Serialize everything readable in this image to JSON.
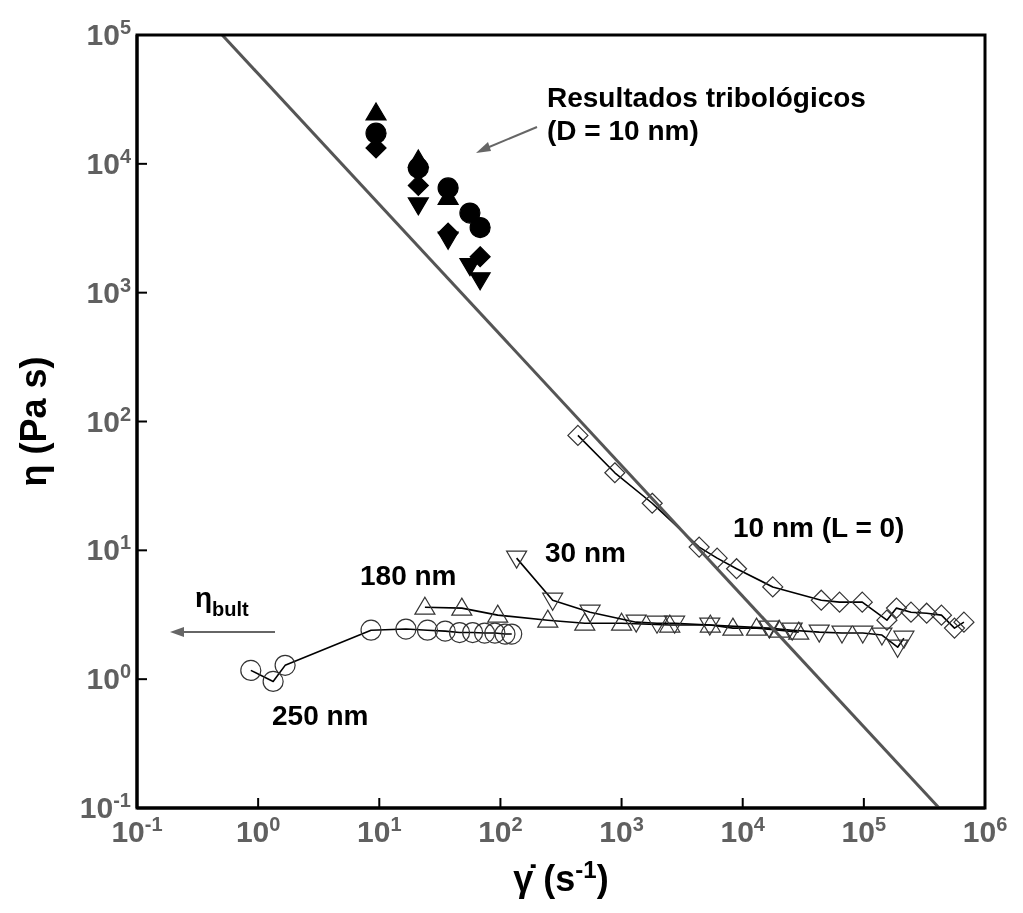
{
  "chart_data": {
    "type": "line",
    "xlabel": "γ̇ (s$^{-1}$)",
    "ylabel": "η (Pa s)",
    "log": "xy",
    "grid": false,
    "legend": false,
    "xlim": [
      0.1,
      1000000
    ],
    "ylim": [
      0.1,
      100000
    ],
    "xticks": [
      {
        "value": 0.1,
        "label": "10$^{-1}$"
      },
      {
        "value": 1,
        "label": "10$^{0}$"
      },
      {
        "value": 10,
        "label": "10$^{1}$"
      },
      {
        "value": 100,
        "label": "10$^{2}$"
      },
      {
        "value": 1000,
        "label": "10$^{3}$"
      },
      {
        "value": 10000,
        "label": "10$^{4}$"
      },
      {
        "value": 100000,
        "label": "10$^{5}$"
      },
      {
        "value": 1000000,
        "label": "10$^{6}$"
      }
    ],
    "yticks": [
      {
        "value": 0.1,
        "label": "10$^{-1}$"
      },
      {
        "value": 1,
        "label": "10$^{0}$"
      },
      {
        "value": 10,
        "label": "10$^{1}$"
      },
      {
        "value": 100,
        "label": "10$^{2}$"
      },
      {
        "value": 1000,
        "label": "10$^{3}$"
      },
      {
        "value": 10000,
        "label": "10$^{4}$"
      },
      {
        "value": 100000,
        "label": "10$^{5}$"
      }
    ],
    "series": [
      {
        "type": "line",
        "marker": "circle",
        "color": "#000000",
        "x": [
          0.87,
          1.33,
          1.67,
          8.55,
          16.6,
          25,
          35,
          46,
          59,
          74,
          90,
          109,
          124
        ],
        "values": [
          1.17,
          0.96,
          1.28,
          2.4,
          2.45,
          2.4,
          2.36,
          2.3,
          2.3,
          2.28,
          2.28,
          2.24,
          2.24
        ]
      },
      {
        "type": "line",
        "marker": "triangle",
        "color": "#000000",
        "x": [
          23.8,
          48,
          95,
          246,
          497,
          1000,
          2500,
          5400,
          8300,
          13000,
          20000,
          29000
        ],
        "values": [
          3.62,
          3.56,
          3.14,
          2.87,
          2.72,
          2.72,
          2.63,
          2.63,
          2.49,
          2.49,
          2.4,
          2.32
        ]
      },
      {
        "type": "line",
        "marker": "triangle_down",
        "color": "#000000",
        "x": [
          136,
          270,
          550,
          1320,
          1960,
          2740,
          5350,
          16600,
          25600,
          42800,
          66000,
          98000,
          141000,
          190000,
          214000
        ],
        "values": [
          8.7,
          4.1,
          3.31,
          2.77,
          2.72,
          2.72,
          2.63,
          2.49,
          2.4,
          2.32,
          2.28,
          2.28,
          2.2,
          1.77,
          2.08
        ]
      },
      {
        "type": "line",
        "marker": "diamond",
        "color": "#000000",
        "x": [
          436,
          880,
          1790,
          4370,
          6150,
          8900,
          17700,
          44500,
          63000,
          97000,
          155000,
          186000,
          245000,
          330000,
          437000,
          560000,
          670000
        ],
        "values": [
          78,
          40,
          23.2,
          10.6,
          8.7,
          7.2,
          5.2,
          4.1,
          3.96,
          3.96,
          2.87,
          3.56,
          3.31,
          3.25,
          3.14,
          2.49,
          2.77
        ]
      },
      {
        "type": "scatter",
        "marker": "triangle",
        "color": "#000000",
        "x": [
          9.4,
          21,
          37
        ],
        "values": [
          24800,
          10700,
          5500
        ]
      },
      {
        "type": "scatter",
        "marker": "circle",
        "color": "#000000",
        "x": [
          9.4,
          21,
          37,
          56,
          68
        ],
        "values": [
          17300,
          9300,
          6500,
          4150,
          3200
        ]
      },
      {
        "type": "scatter",
        "marker": "diamond",
        "color": "#000000",
        "x": [
          9.4,
          21,
          37,
          68
        ],
        "values": [
          13300,
          6800,
          2900,
          1900
        ]
      },
      {
        "type": "scatter",
        "marker": "triangle_down",
        "color": "#000000",
        "x": [
          21,
          37,
          56,
          68
        ],
        "values": [
          4800,
          2600,
          1620,
          1260
        ]
      },
      {
        "type": "line",
        "marker": "none",
        "color": "#555555",
        "x": [
          0.505,
          418000
        ],
        "values": [
          100000,
          0.1
        ]
      }
    ],
    "annotations": [
      "Resultados tribológicos",
      "(D = 10 nm)",
      "10 nm (L = 0)",
      "30 nm",
      "180 nm",
      "250 nm",
      "η$_{bult}$"
    ]
  }
}
